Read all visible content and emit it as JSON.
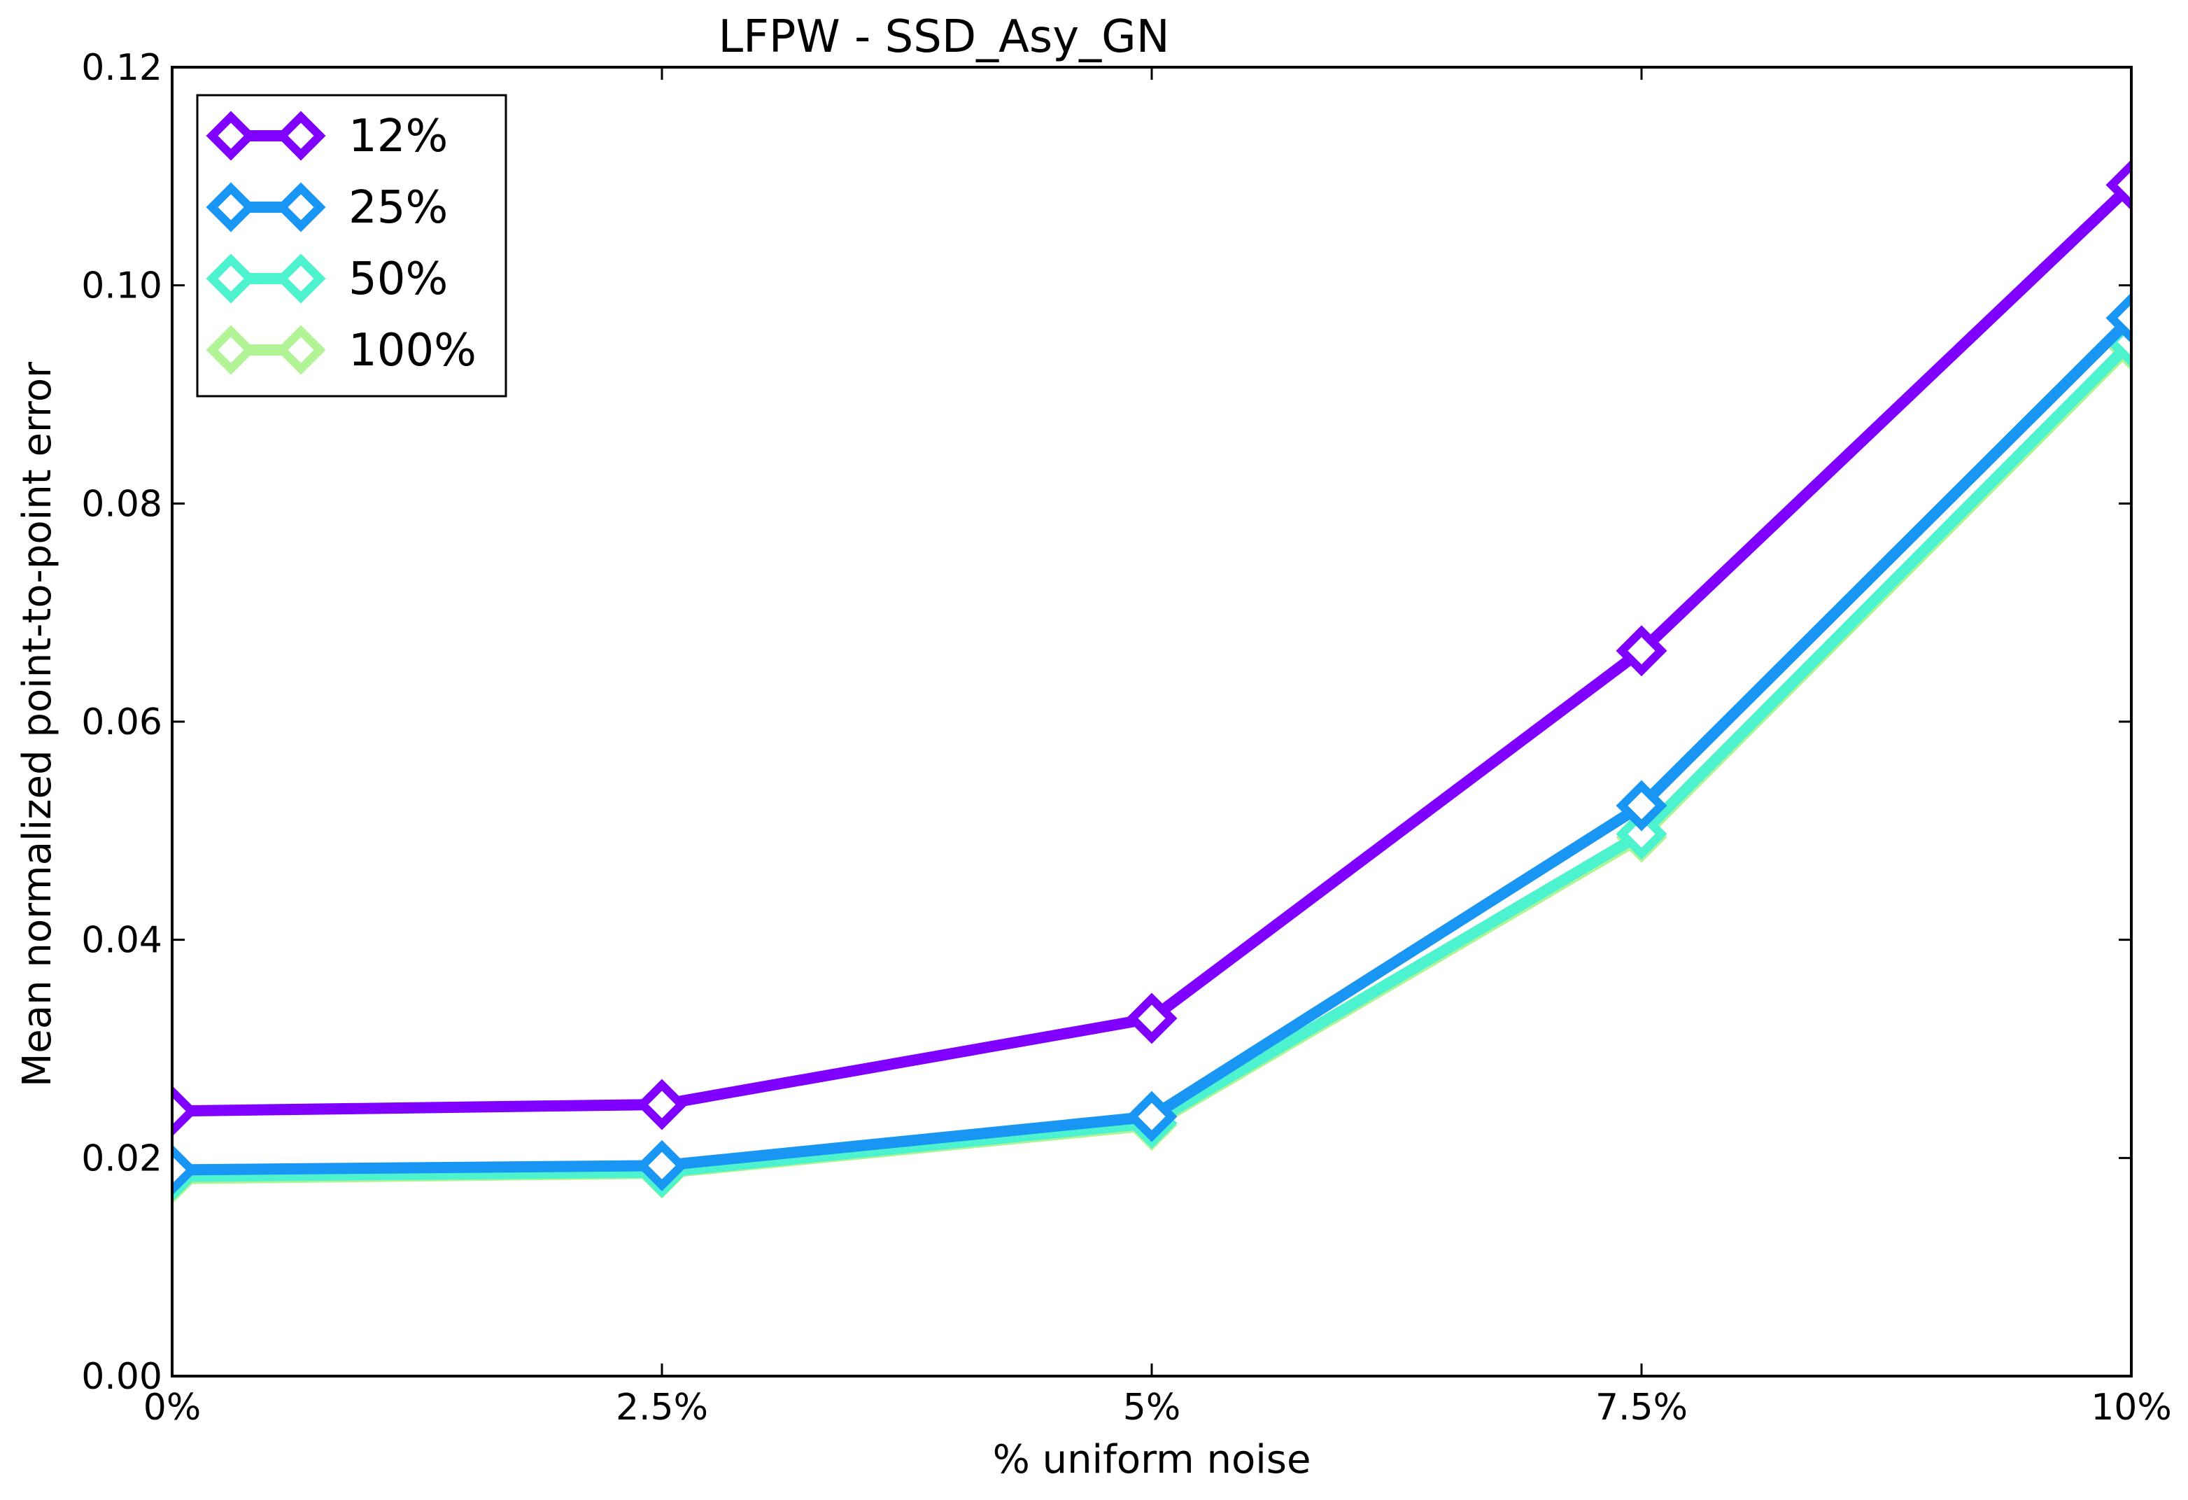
{
  "chart_data": {
    "type": "line",
    "title": "LFPW - SSD_Asy_GN",
    "xlabel": "% uniform noise",
    "ylabel": "Mean normalized point-to-point error",
    "x": [
      0,
      2.5,
      5,
      7.5,
      10
    ],
    "x_tick_labels": [
      "0%",
      "2.5%",
      "5%",
      "7.5%",
      "10%"
    ],
    "xlim": [
      0,
      10
    ],
    "ylim": [
      0,
      0.12
    ],
    "y_ticks": [
      0.0,
      0.02,
      0.04,
      0.06,
      0.08,
      0.1,
      0.12
    ],
    "y_tick_labels": [
      "0.00",
      "0.02",
      "0.04",
      "0.06",
      "0.08",
      "0.10",
      "0.12"
    ],
    "grid": false,
    "legend_position": "top-left",
    "marker": "diamond",
    "series": [
      {
        "name": "12%",
        "color": "#8000ff",
        "values": [
          0.0243,
          0.0249,
          0.0328,
          0.0665,
          0.1092
        ]
      },
      {
        "name": "25%",
        "color": "#1996f3",
        "values": [
          0.0189,
          0.0193,
          0.0238,
          0.0523,
          0.097
        ]
      },
      {
        "name": "50%",
        "color": "#4df3ce",
        "values": [
          0.0183,
          0.0187,
          0.0232,
          0.0497,
          0.0948
        ]
      },
      {
        "name": "100%",
        "color": "#b2f396",
        "values": [
          0.0181,
          0.0186,
          0.023,
          0.0494,
          0.0945
        ]
      }
    ]
  }
}
